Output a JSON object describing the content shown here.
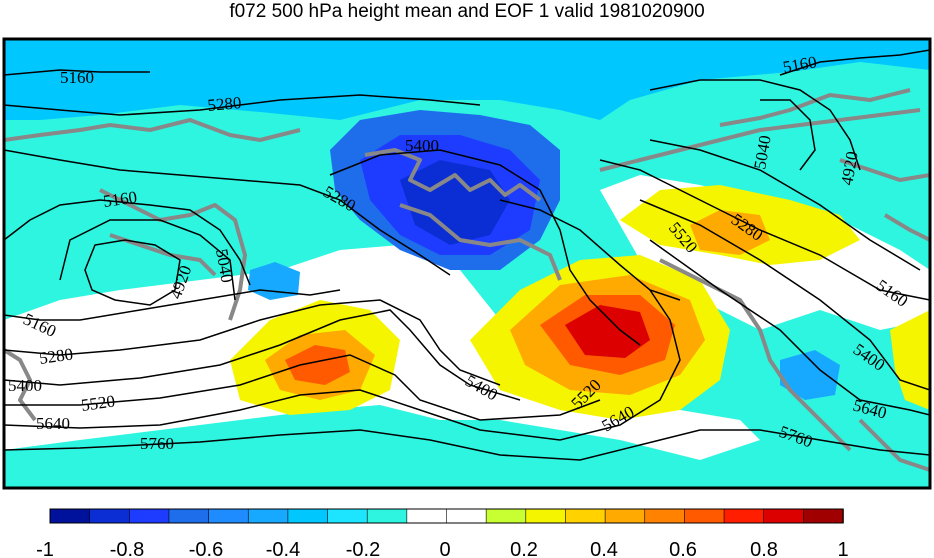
{
  "title": "f072 500 hPa height mean and EOF 1 valid 1981020900",
  "contour_labels": [
    "5160",
    "5280",
    "5400",
    "5040",
    "4920",
    "5520",
    "5640",
    "5760"
  ],
  "colorbar": {
    "ticks": [
      "-1",
      "-0.8",
      "-0.6",
      "-0.4",
      "-0.2",
      "0",
      "0.2",
      "0.4",
      "0.6",
      "0.8",
      "1"
    ],
    "colors": [
      "#00129c",
      "#0a2ed4",
      "#1e3cff",
      "#1e6eeb",
      "#1e8cff",
      "#17a9ff",
      "#00c8ff",
      "#1ee5ff",
      "#2ef5e0",
      "#ffffff",
      "#ffffff",
      "#c8ff32",
      "#f5f500",
      "#ffd200",
      "#ffaa00",
      "#ff8200",
      "#ff5a00",
      "#ff1e00",
      "#dc0000",
      "#a00000"
    ]
  },
  "palette": {
    "land_line": "#888888",
    "contour_line": "#000000",
    "frame": "#000000"
  }
}
